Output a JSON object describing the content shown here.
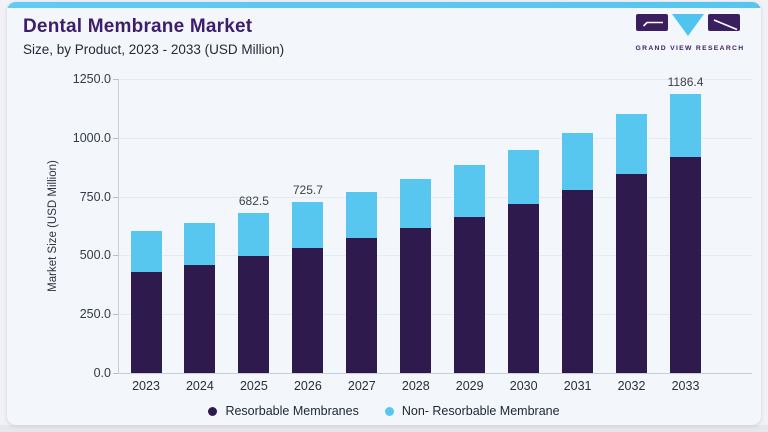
{
  "header": {
    "title": "Dental Membrane Market",
    "subtitle": "Size, by Product, 2023 - 2033 (USD Million)"
  },
  "logo": {
    "text": "GRAND VIEW RESEARCH"
  },
  "colors": {
    "resorbable": "#2e1a4d",
    "non_resorbable": "#57c7f0",
    "accent_bar": "#5ac6ef",
    "title_purple": "#3d1e6d",
    "card_background": "#f3f6fa"
  },
  "chart_data": {
    "type": "bar",
    "stacked": true,
    "title": "Dental Membrane Market",
    "subtitle": "Size, by Product, 2023 - 2033 (USD Million)",
    "xlabel": "",
    "ylabel": "Market Size (USD Million)",
    "ylim": [
      0,
      1250
    ],
    "yticks": [
      0,
      250,
      500,
      750,
      1000,
      1250
    ],
    "ytick_labels": [
      "0.0",
      "250.0",
      "500.0",
      "750.0",
      "1000.0",
      "1250.0"
    ],
    "grid": true,
    "legend_position": "bottom",
    "categories": [
      "2023",
      "2024",
      "2025",
      "2026",
      "2027",
      "2028",
      "2029",
      "2030",
      "2031",
      "2032",
      "2033"
    ],
    "series": [
      {
        "name": "Resorbable Membranes",
        "color": "#2e1a4d",
        "values": [
          430,
          460,
          496,
          531,
          572,
          615,
          661,
          717,
          777,
          845,
          919
        ]
      },
      {
        "name": "Non- Resorbable Membrane",
        "color": "#57c7f0",
        "values": [
          175,
          177,
          186.5,
          194.7,
          198,
          210,
          224,
          232,
          242,
          257,
          267.4
        ]
      }
    ],
    "totals": [
      605,
      637,
      682.5,
      725.7,
      770,
      825,
      885,
      949,
      1019,
      1102,
      1186.4
    ],
    "bar_total_labels": [
      "",
      "",
      "682.5",
      "725.7",
      "",
      "",
      "",
      "",
      "",
      "",
      "1186.4"
    ]
  },
  "legend": {
    "items": [
      {
        "label": "Resorbable Membranes",
        "color": "#2e1a4d"
      },
      {
        "label": "Non- Resorbable Membrane",
        "color": "#57c7f0"
      }
    ]
  }
}
